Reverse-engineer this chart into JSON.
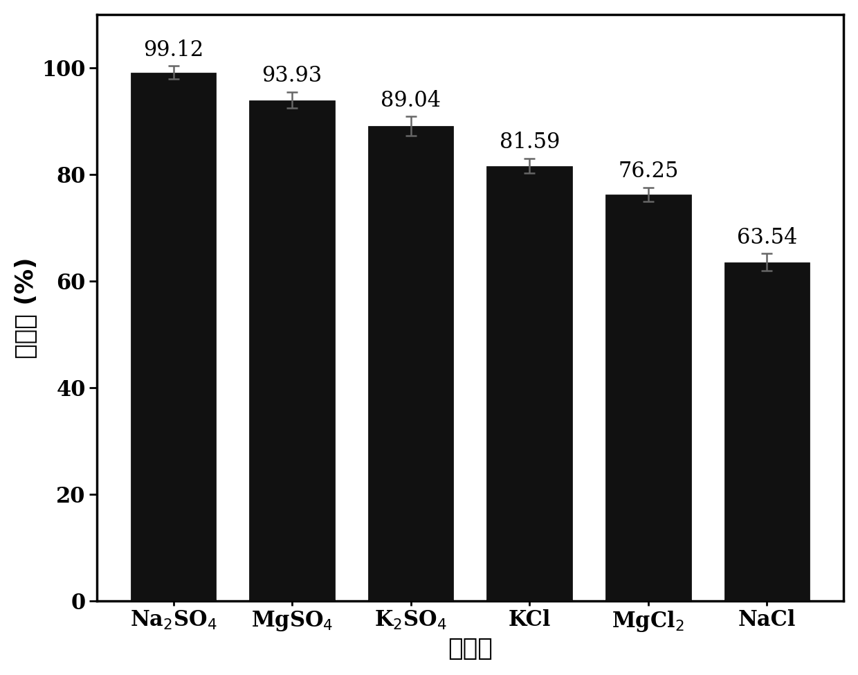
{
  "values": [
    99.12,
    93.93,
    89.04,
    81.59,
    76.25,
    63.54
  ],
  "errors": [
    1.2,
    1.5,
    1.8,
    1.4,
    1.3,
    1.6
  ],
  "bar_color": "#111111",
  "ylabel": "截留率 (%)",
  "xlabel": "无机盐",
  "ylim": [
    0,
    110
  ],
  "yticks": [
    0,
    20,
    40,
    60,
    80,
    100
  ],
  "label_fontsize": 26,
  "tick_fontsize": 22,
  "value_fontsize": 22,
  "bar_width": 0.72,
  "background_color": "#ffffff",
  "error_capsize": 6,
  "error_linewidth": 1.8,
  "spine_linewidth": 2.5
}
